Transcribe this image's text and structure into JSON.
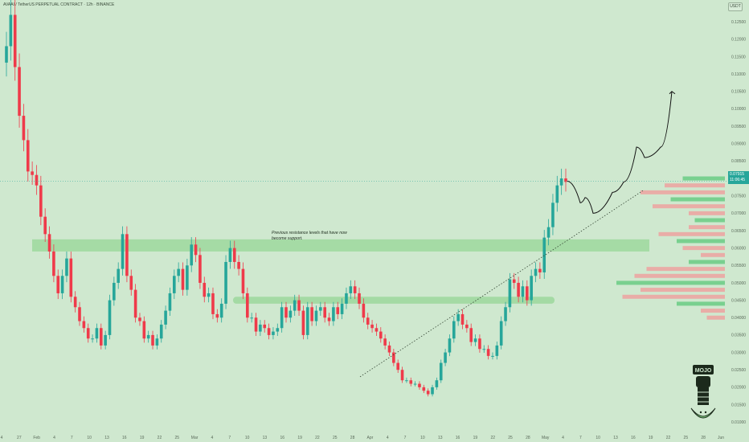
{
  "header": {
    "title": "AVAAI / TetherUS PERPETUAL CONTRACT · 12h · BINANCE",
    "unit": "USDT"
  },
  "current_price": {
    "value": "0.07915",
    "countdown": "11:06:45"
  },
  "annotation": "Previous resistance levels that have now become support.",
  "watermark": "MOJO",
  "colors": {
    "background": "#cfe8cf",
    "bull": "#26a69a",
    "bear": "#ef3a4a",
    "zone": "#9ed89e",
    "volume_green": "#5cc87a",
    "volume_red": "#f29a9a"
  },
  "chart_data": {
    "type": "candlestick",
    "title": "AVAAI / TetherUS PERPETUAL CONTRACT · 12h · BINANCE",
    "y_unit": "USDT",
    "ylim": [
      0.0075,
      0.1285
    ],
    "y_ticks": [
      "0.12500",
      "0.12000",
      "0.11500",
      "0.11000",
      "0.10500",
      "0.10000",
      "0.09500",
      "0.09000",
      "0.08500",
      "0.08000",
      "0.07500",
      "0.07000",
      "0.06500",
      "0.06000",
      "0.05500",
      "0.05000",
      "0.04500",
      "0.04000",
      "0.03500",
      "0.03000",
      "0.02500",
      "0.02000",
      "0.01500",
      "0.01000"
    ],
    "x_ticks": [
      "4",
      "27",
      "Feb",
      "4",
      "7",
      "10",
      "13",
      "16",
      "19",
      "22",
      "25",
      "Mar",
      "4",
      "7",
      "10",
      "13",
      "16",
      "19",
      "22",
      "25",
      "28",
      "Apr",
      "4",
      "7",
      "10",
      "13",
      "16",
      "19",
      "22",
      "25",
      "28",
      "May",
      "4",
      "7",
      "10",
      "13",
      "16",
      "19",
      "22",
      "25",
      "28",
      "Jun"
    ],
    "closes": [
      0.118,
      0.127,
      0.112,
      0.098,
      0.091,
      0.082,
      0.081,
      0.078,
      0.069,
      0.064,
      0.059,
      0.052,
      0.047,
      0.052,
      0.057,
      0.046,
      0.043,
      0.039,
      0.037,
      0.034,
      0.034,
      0.037,
      0.032,
      0.035,
      0.045,
      0.05,
      0.054,
      0.064,
      0.052,
      0.048,
      0.04,
      0.039,
      0.034,
      0.035,
      0.032,
      0.034,
      0.038,
      0.042,
      0.047,
      0.052,
      0.054,
      0.048,
      0.055,
      0.061,
      0.058,
      0.05,
      0.046,
      0.047,
      0.041,
      0.04,
      0.044,
      0.056,
      0.06,
      0.056,
      0.054,
      0.047,
      0.04,
      0.04,
      0.036,
      0.038,
      0.037,
      0.035,
      0.036,
      0.037,
      0.043,
      0.04,
      0.042,
      0.045,
      0.042,
      0.035,
      0.043,
      0.039,
      0.042,
      0.043,
      0.04,
      0.039,
      0.043,
      0.041,
      0.044,
      0.047,
      0.049,
      0.047,
      0.044,
      0.04,
      0.038,
      0.037,
      0.036,
      0.034,
      0.032,
      0.03,
      0.027,
      0.025,
      0.022,
      0.022,
      0.021,
      0.021,
      0.02,
      0.019,
      0.018,
      0.02,
      0.022,
      0.027,
      0.03,
      0.034,
      0.039,
      0.041,
      0.038,
      0.037,
      0.033,
      0.034,
      0.031,
      0.031,
      0.029,
      0.029,
      0.032,
      0.039,
      0.043,
      0.051,
      0.05,
      0.046,
      0.049,
      0.045,
      0.052,
      0.054,
      0.053,
      0.063,
      0.066,
      0.073,
      0.078,
      0.08,
      0.079
    ],
    "series": [
      {
        "values": [
          0.059,
          0.0625
        ],
        "type": "zone"
      },
      {
        "values": [
          0.044,
          0.046
        ],
        "type": "zone"
      }
    ],
    "projection_path_prices": [
      0.0792,
      0.073,
      0.0745,
      0.07,
      0.076,
      0.079,
      0.089,
      0.086,
      0.089,
      0.105
    ],
    "trendline": [
      0.023,
      0.0765
    ],
    "grid": false
  }
}
